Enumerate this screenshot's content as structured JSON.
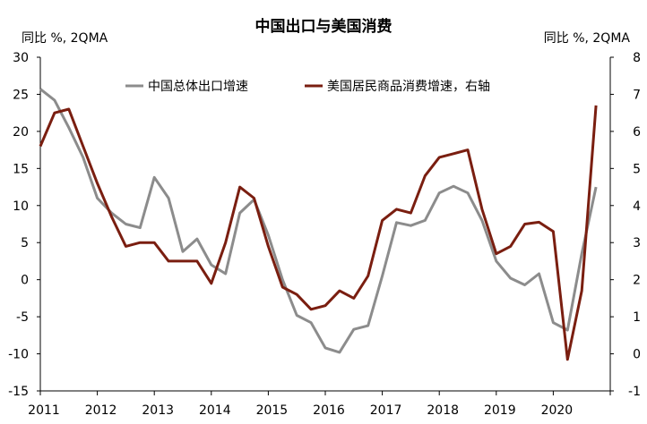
{
  "chart_data": {
    "type": "line",
    "title": "中国出口与美国消费",
    "left_axis_unit": "同比 %, 2QMA",
    "right_axis_unit": "同比 %, 2QMA",
    "ylim_left": [
      -15,
      30
    ],
    "ylim_right": [
      -1,
      8
    ],
    "yticks_left": [
      "30",
      "25",
      "20",
      "15",
      "10",
      "5",
      "0",
      "-5",
      "-10",
      "-15"
    ],
    "yticks_right": [
      "8",
      "7",
      "6",
      "5",
      "4",
      "3",
      "2",
      "1",
      "0",
      "-1"
    ],
    "xticks": [
      "2011",
      "2012",
      "2013",
      "2014",
      "2015",
      "2016",
      "2017",
      "2018",
      "2019",
      "2020"
    ],
    "xlim": [
      2011.0,
      2021.0
    ],
    "grid": false,
    "legend_position": "top",
    "colors": {
      "china_exports": "#8c8c8c",
      "us_consumption": "#7a1e10"
    },
    "series": [
      {
        "name": "中国总体出口增速",
        "axis": "left",
        "x": [
          2011.0,
          2011.25,
          2011.5,
          2011.75,
          2012.0,
          2012.25,
          2012.5,
          2012.75,
          2013.0,
          2013.25,
          2013.5,
          2013.75,
          2014.0,
          2014.25,
          2014.5,
          2014.75,
          2015.0,
          2015.25,
          2015.5,
          2015.75,
          2016.0,
          2016.25,
          2016.5,
          2016.75,
          2017.0,
          2017.25,
          2017.5,
          2017.75,
          2018.0,
          2018.25,
          2018.5,
          2018.75,
          2019.0,
          2019.25,
          2019.5,
          2019.75,
          2020.0,
          2020.25,
          2020.5,
          2020.75
        ],
        "values": [
          25.7,
          24.2,
          20.5,
          16.5,
          11.0,
          9.0,
          7.5,
          7.0,
          13.8,
          11.0,
          3.8,
          5.5,
          2.0,
          0.8,
          9.0,
          10.8,
          6.0,
          0.0,
          -4.8,
          -5.8,
          -9.2,
          -9.8,
          -6.7,
          -6.2,
          0.5,
          7.7,
          7.3,
          8.0,
          11.7,
          12.6,
          11.7,
          8.0,
          2.5,
          0.2,
          -0.7,
          0.8,
          -5.8,
          -6.8,
          3.5,
          12.5
        ]
      },
      {
        "name": "美国居民商品消费增速，右轴",
        "axis": "right",
        "x": [
          2011.0,
          2011.25,
          2011.5,
          2011.75,
          2012.0,
          2012.25,
          2012.5,
          2012.75,
          2013.0,
          2013.25,
          2013.5,
          2013.75,
          2014.0,
          2014.25,
          2014.5,
          2014.75,
          2015.0,
          2015.25,
          2015.5,
          2015.75,
          2016.0,
          2016.25,
          2016.5,
          2016.75,
          2017.0,
          2017.25,
          2017.5,
          2017.75,
          2018.0,
          2018.25,
          2018.5,
          2018.75,
          2019.0,
          2019.25,
          2019.5,
          2019.75,
          2020.0,
          2020.25,
          2020.5,
          2020.75
        ],
        "values": [
          5.6,
          6.5,
          6.6,
          5.6,
          4.6,
          3.7,
          2.9,
          3.0,
          3.0,
          2.5,
          2.5,
          2.5,
          1.9,
          3.0,
          4.5,
          4.2,
          2.9,
          1.8,
          1.6,
          1.2,
          1.3,
          1.7,
          1.5,
          2.1,
          3.6,
          3.9,
          3.8,
          4.8,
          5.3,
          5.4,
          5.5,
          3.9,
          2.7,
          2.9,
          3.5,
          3.55,
          3.3,
          -0.15,
          1.7,
          6.7
        ]
      }
    ]
  }
}
